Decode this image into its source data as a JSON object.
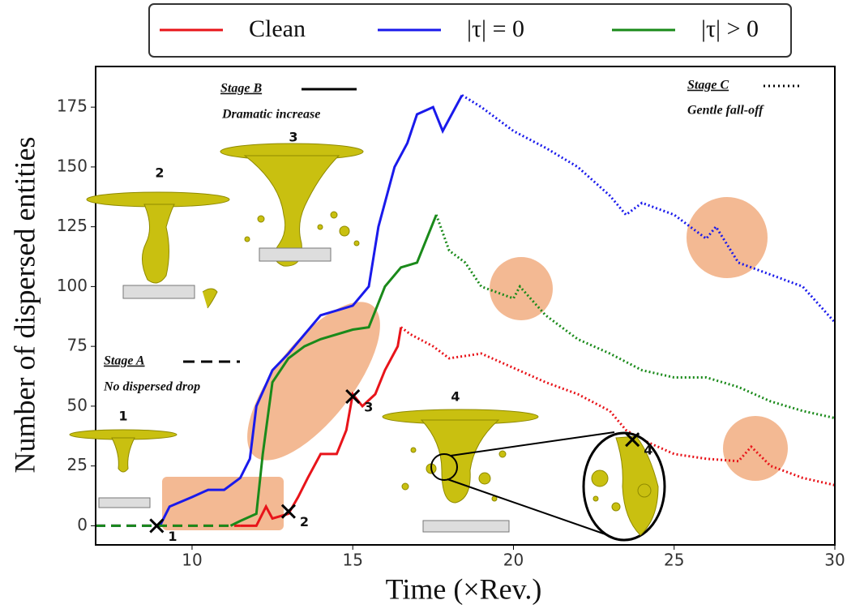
{
  "chart_data": {
    "type": "line",
    "x_label": "Time (×Rev.)",
    "y_label": "Number of dispersed entities",
    "xlim": [
      7,
      30
    ],
    "ylim": [
      -8,
      192
    ],
    "xticks": [
      10,
      15,
      20,
      25,
      30
    ],
    "yticks": [
      0,
      25,
      50,
      75,
      100,
      125,
      150,
      175
    ],
    "stages": [
      {
        "name": "Stage A",
        "label": "No dispersed drop"
      },
      {
        "name": "Stage B",
        "label": "Dramatic increase"
      },
      {
        "name": "Stage C",
        "label": "Gentle fall-off"
      }
    ],
    "insets": [
      "1",
      "2",
      "3",
      "4"
    ],
    "series": [
      {
        "name": "Clean",
        "color": "#e8141a",
        "dash_until": 11.5,
        "dot_from": 16.5,
        "x": [
          7,
          9,
          11.5,
          12,
          12.3,
          12.5,
          13,
          13.3,
          13.6,
          14,
          14.5,
          14.8,
          15,
          15.3,
          15.7,
          16,
          16.4,
          16.5,
          16.8,
          17.5,
          18,
          19,
          20,
          21,
          22,
          23,
          23.5,
          24,
          25,
          26,
          27,
          27.4,
          28,
          29,
          30
        ],
        "values": [
          0,
          0,
          0,
          0,
          8,
          3,
          5,
          12,
          20,
          30,
          30,
          40,
          55,
          50,
          55,
          65,
          75,
          83,
          80,
          75,
          70,
          72,
          66,
          60,
          55,
          48,
          40,
          36,
          30,
          28,
          27,
          33,
          25,
          20,
          17
        ]
      },
      {
        "name": "|τ| = 0",
        "color": "#1a1aeb",
        "dash_until": 9,
        "dot_from": 18.4,
        "x": [
          7,
          9,
          9.3,
          10,
          10.5,
          11,
          11.5,
          11.8,
          12,
          12.5,
          13,
          13.5,
          14,
          14.5,
          15,
          15.5,
          15.8,
          16.3,
          16.7,
          17,
          17.5,
          17.8,
          18.4,
          19,
          20,
          21,
          22,
          23,
          23.5,
          24,
          25,
          26,
          26.3,
          27,
          28,
          29,
          30
        ],
        "values": [
          0,
          0,
          8,
          12,
          15,
          15,
          20,
          28,
          50,
          65,
          72,
          80,
          88,
          90,
          92,
          100,
          125,
          150,
          160,
          172,
          175,
          165,
          180,
          175,
          165,
          158,
          150,
          138,
          130,
          135,
          130,
          120,
          125,
          110,
          105,
          100,
          85
        ]
      },
      {
        "name": "|τ| > 0",
        "color": "#1a8a1a",
        "dash_until": 11.2,
        "dot_from": 17.6,
        "x": [
          7,
          9,
          11.2,
          11.5,
          12,
          12.2,
          12.5,
          13,
          13.5,
          14,
          15,
          15.5,
          16,
          16.5,
          17,
          17.6,
          18,
          18.5,
          19,
          20,
          20.2,
          21,
          22,
          23,
          24,
          25,
          26,
          27,
          28,
          29,
          30
        ],
        "values": [
          0,
          0,
          0,
          2,
          5,
          30,
          60,
          70,
          75,
          78,
          82,
          83,
          100,
          108,
          110,
          130,
          115,
          110,
          100,
          95,
          100,
          88,
          78,
          72,
          65,
          62,
          62,
          58,
          52,
          48,
          45
        ]
      }
    ],
    "markers": [
      {
        "x": 8.9,
        "y": 0,
        "label": "1"
      },
      {
        "x": 13,
        "y": 6,
        "label": "2"
      },
      {
        "x": 15,
        "y": 54,
        "label": "3"
      },
      {
        "x": 23.7,
        "y": 36,
        "label": "4"
      }
    ]
  }
}
